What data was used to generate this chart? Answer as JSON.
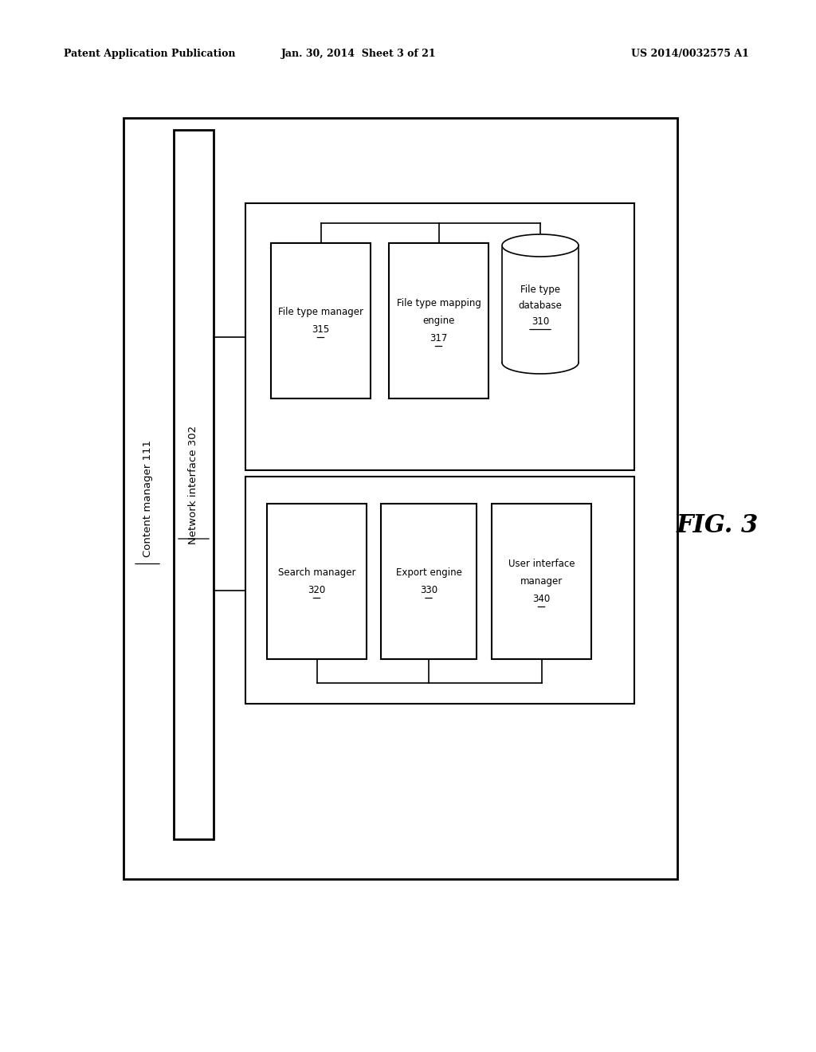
{
  "background_color": "#ffffff",
  "header_left": "Patent Application Publication",
  "header_center": "Jan. 30, 2014  Sheet 3 of 21",
  "header_right": "US 2014/0032575 A1",
  "fig_label": "FIG. 3"
}
